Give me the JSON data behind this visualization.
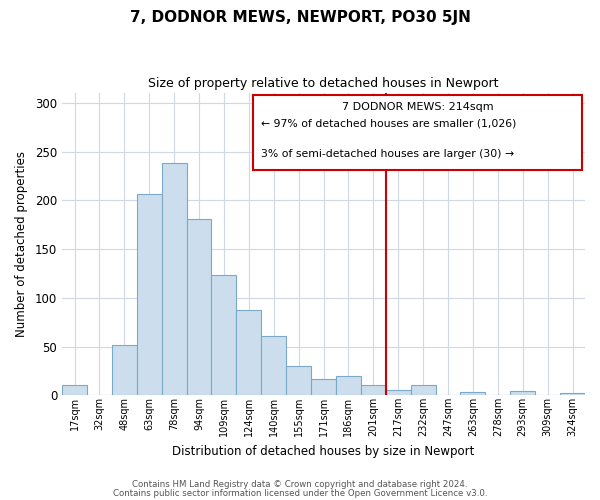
{
  "title": "7, DODNOR MEWS, NEWPORT, PO30 5JN",
  "subtitle": "Size of property relative to detached houses in Newport",
  "xlabel": "Distribution of detached houses by size in Newport",
  "ylabel": "Number of detached properties",
  "bar_labels": [
    "17sqm",
    "32sqm",
    "48sqm",
    "63sqm",
    "78sqm",
    "94sqm",
    "109sqm",
    "124sqm",
    "140sqm",
    "155sqm",
    "171sqm",
    "186sqm",
    "201sqm",
    "217sqm",
    "232sqm",
    "247sqm",
    "263sqm",
    "278sqm",
    "293sqm",
    "309sqm",
    "324sqm"
  ],
  "bar_values": [
    11,
    0,
    52,
    206,
    238,
    181,
    123,
    88,
    61,
    30,
    17,
    20,
    11,
    6,
    11,
    0,
    3,
    0,
    5,
    0,
    2
  ],
  "bar_color": "#ccdded",
  "bar_edge_color": "#7aaac8",
  "vline_x_index": 13,
  "vline_color": "#cc0000",
  "annotation_title": "7 DODNOR MEWS: 214sqm",
  "annotation_line1": "← 97% of detached houses are smaller (1,026)",
  "annotation_line2": "3% of semi-detached houses are larger (30) →",
  "annotation_box_edge": "#cc0000",
  "ylim": [
    0,
    310
  ],
  "yticks": [
    0,
    50,
    100,
    150,
    200,
    250,
    300
  ],
  "footer1": "Contains HM Land Registry data © Crown copyright and database right 2024.",
  "footer2": "Contains public sector information licensed under the Open Government Licence v3.0.",
  "bg_color": "#ffffff",
  "grid_color": "#d0d8e8"
}
